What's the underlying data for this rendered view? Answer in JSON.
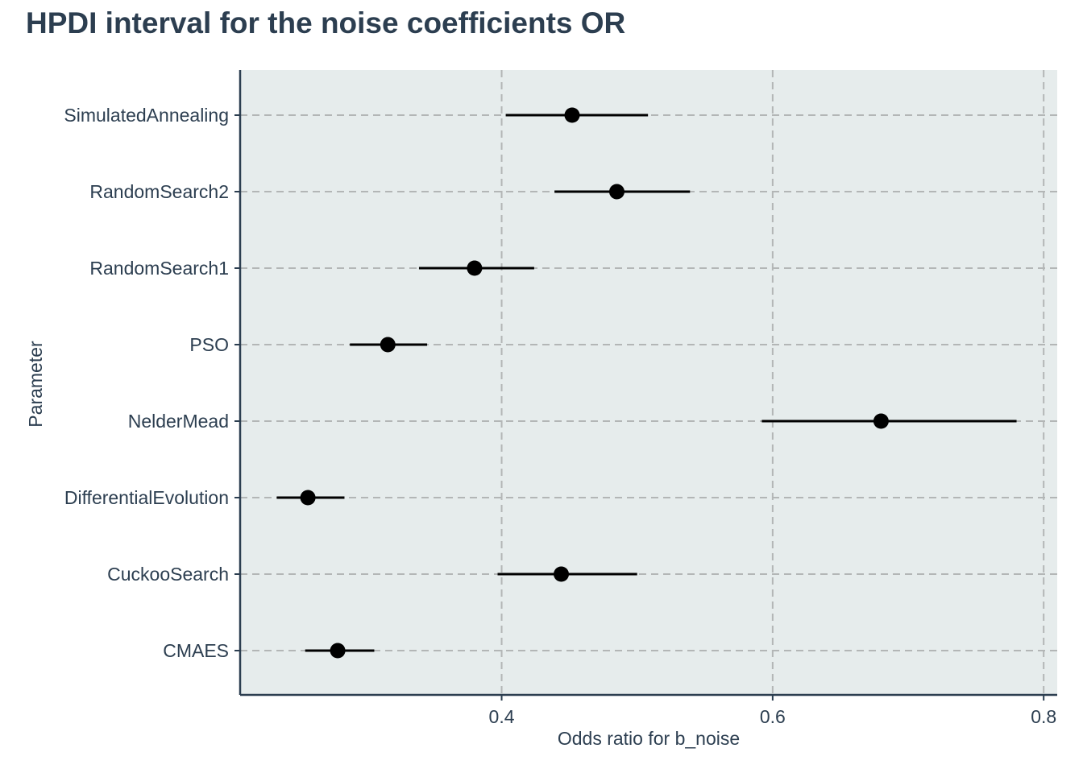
{
  "chart_data": {
    "type": "interval",
    "title": "HPDI interval for the noise coefficients OR",
    "xlabel": "Odds ratio for b_noise",
    "ylabel": "Parameter",
    "xlim": [
      0.207,
      0.81
    ],
    "xticks": [
      0.4,
      0.6,
      0.8
    ],
    "xtick_labels": [
      "0.4",
      "0.6",
      "0.8"
    ],
    "grid": true,
    "colors": {
      "panel_background": "#e6ecec",
      "gridline": "#b3b6b6",
      "axis": "#2c3e50",
      "text": "#2c3e50",
      "mark": "#000000"
    },
    "categories": [
      "SimulatedAnnealing",
      "RandomSearch2",
      "RandomSearch1",
      "PSO",
      "NelderMead",
      "DifferentialEvolution",
      "CuckooSearch",
      "CMAES"
    ],
    "points": [
      0.452,
      0.485,
      0.38,
      0.316,
      0.68,
      0.257,
      0.444,
      0.279
    ],
    "lower": [
      0.403,
      0.439,
      0.339,
      0.288,
      0.592,
      0.234,
      0.397,
      0.255
    ],
    "upper": [
      0.508,
      0.539,
      0.424,
      0.345,
      0.78,
      0.284,
      0.5,
      0.306
    ]
  }
}
